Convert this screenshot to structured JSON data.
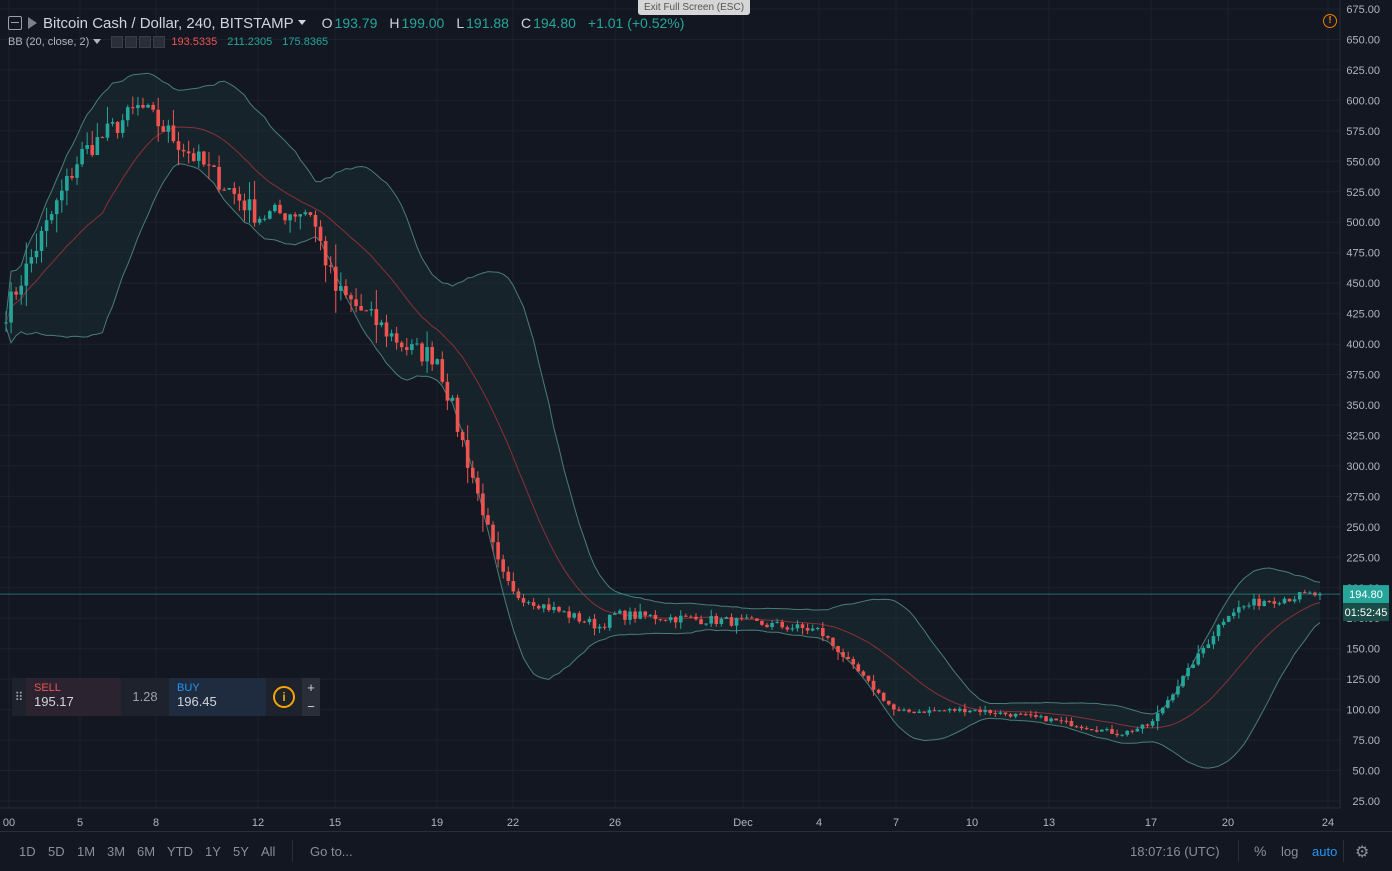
{
  "legend": {
    "title": "Bitcoin Cash / Dollar, 240, BITSTAMP",
    "o_label": "O",
    "o_value": "193.79",
    "h_label": "H",
    "h_value": "199.00",
    "l_label": "L",
    "l_value": "191.88",
    "c_label": "C",
    "c_value": "194.80",
    "change": "+1.01 (+0.52%)"
  },
  "bb": {
    "label": "BB (20, close, 2)",
    "basis": "193.5335",
    "upper": "211.2305",
    "lower": "175.8365"
  },
  "fullscreen_hint": "Exit Full Screen (ESC)",
  "trade_panel": {
    "sell_label": "SELL",
    "sell_price": "195.17",
    "spread": "1.28",
    "buy_label": "BUY",
    "buy_price": "196.45",
    "plus": "+",
    "minus": "−"
  },
  "price_axis": {
    "ticks": [
      "675.00",
      "650.00",
      "625.00",
      "600.00",
      "575.00",
      "550.00",
      "525.00",
      "500.00",
      "475.00",
      "450.00",
      "425.00",
      "400.00",
      "375.00",
      "350.00",
      "325.00",
      "300.00",
      "275.00",
      "250.00",
      "225.00",
      "200.00",
      "175.00",
      "150.00",
      "125.00",
      "100.00",
      "75.00",
      "50.00",
      "25.00"
    ],
    "last_price": "194.80",
    "countdown": "01:52:45"
  },
  "time_axis": {
    "labels": [
      "00",
      "5",
      "8",
      "12",
      "15",
      "19",
      "22",
      "26",
      "Dec",
      "4",
      "7",
      "10",
      "13",
      "17",
      "20",
      "24"
    ]
  },
  "bottom_bar": {
    "timeframes": [
      "1D",
      "5D",
      "1M",
      "3M",
      "6M",
      "YTD",
      "1Y",
      "5Y",
      "All"
    ],
    "goto": "Go to...",
    "clock": "18:07:16 (UTC)",
    "percent": "%",
    "log": "log",
    "auto": "auto"
  },
  "colors": {
    "up": "#26a69a",
    "down": "#ef5350",
    "background": "#131722",
    "bb_band": "#4a7d7a",
    "bb_basis": "#8b2f3a",
    "price_line": "#26a69a"
  },
  "chart_data": {
    "type": "candlestick",
    "ylim": [
      25,
      675
    ],
    "anchor_closes": [
      [
        "00",
        425
      ],
      [
        "5",
        555
      ],
      [
        "8",
        595
      ],
      [
        "12",
        505
      ],
      [
        "15",
        510
      ],
      [
        "15",
        445
      ],
      [
        "19",
        395
      ],
      [
        "19",
        390
      ],
      [
        "22",
        215
      ],
      [
        "22",
        195
      ],
      [
        "26",
        168
      ],
      [
        "26",
        178
      ],
      [
        "Dec",
        172
      ],
      [
        "4",
        165
      ],
      [
        "7",
        98
      ],
      [
        "10",
        100
      ],
      [
        "13",
        92
      ],
      [
        "17",
        80
      ],
      [
        "17",
        88
      ],
      [
        "20",
        180
      ],
      [
        "20",
        190
      ],
      [
        "24",
        194.8
      ]
    ],
    "indicator": "Bollinger Bands (20, close, 2)"
  }
}
